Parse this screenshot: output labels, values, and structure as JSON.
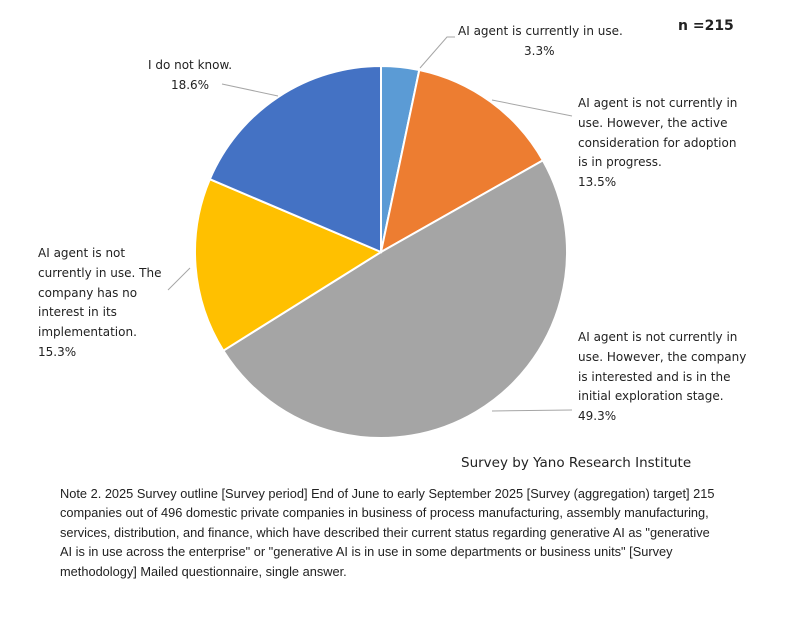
{
  "chart_data": {
    "type": "pie",
    "n_label": "n =215",
    "start": "top, clockwise",
    "slices": [
      {
        "label": "AI agent is currently in use.",
        "value": 3.3,
        "value_label": "3.3%",
        "color": "#5B9BD5"
      },
      {
        "label": "AI agent is not currently in use. However, the active consideration for adoption is in progress.",
        "value": 13.5,
        "value_label": "13.5%",
        "color": "#ED7D31"
      },
      {
        "label": "AI agent is not currently in use. However, the company is interested and is in the initial exploration stage.",
        "value": 49.3,
        "value_label": "49.3%",
        "color": "#A5A5A5"
      },
      {
        "label": "AI agent is not currently in use.  The company has no interest in its implementation.",
        "value": 15.3,
        "value_label": "15.3%",
        "color": "#FFC000"
      },
      {
        "label": "I do not know.",
        "value": 18.6,
        "value_label": "18.6%",
        "color": "#4472C4"
      }
    ],
    "source": "Survey by Yano Research Institute",
    "note": "Note 2. 2025 Survey outline [Survey period] End of June to early September 2025 [Survey (aggregation) target] 215 companies out of 496 domestic private companies in business of process manufacturing, assembly manufacturing, services, distribution, and finance, which have described their current status regarding generative AI as \"generative AI is in use across the enterprise\" or \"generative AI is in use in some departments or business units\" [Survey methodology] Mailed questionnaire, single answer."
  }
}
